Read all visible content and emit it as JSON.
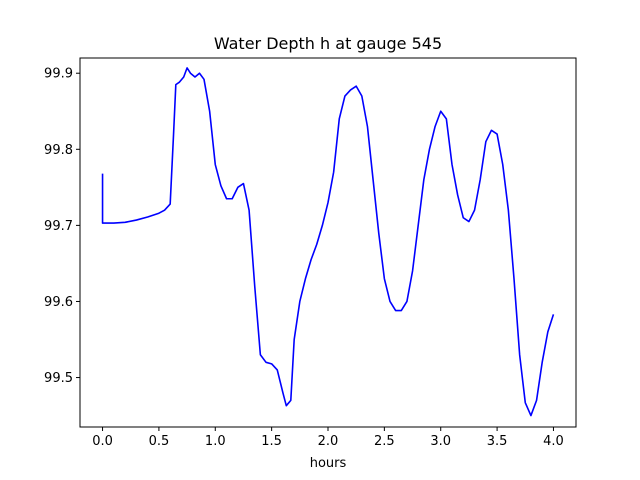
{
  "chart_data": {
    "type": "line",
    "title": "Water Depth h at gauge 545",
    "xlabel": "hours",
    "ylabel": "",
    "xlim": [
      -0.2,
      4.2
    ],
    "ylim": [
      99.435,
      99.92
    ],
    "xticks": [
      "0.0",
      "0.5",
      "1.0",
      "1.5",
      "2.0",
      "2.5",
      "3.0",
      "3.5",
      "4.0"
    ],
    "yticks": [
      "99.5",
      "99.6",
      "99.7",
      "99.8",
      "99.9"
    ],
    "grid": false,
    "legend": "none",
    "series": [
      {
        "color": "#0000ff",
        "x": [
          0.0,
          0.0,
          0.05,
          0.1,
          0.2,
          0.3,
          0.4,
          0.5,
          0.55,
          0.6,
          0.63,
          0.65,
          0.68,
          0.72,
          0.75,
          0.78,
          0.82,
          0.86,
          0.9,
          0.95,
          1.0,
          1.05,
          1.1,
          1.15,
          1.2,
          1.25,
          1.3,
          1.35,
          1.4,
          1.45,
          1.5,
          1.55,
          1.6,
          1.63,
          1.67,
          1.7,
          1.75,
          1.8,
          1.85,
          1.9,
          1.95,
          2.0,
          2.05,
          2.1,
          2.15,
          2.2,
          2.25,
          2.3,
          2.35,
          2.4,
          2.45,
          2.5,
          2.55,
          2.6,
          2.65,
          2.7,
          2.75,
          2.8,
          2.85,
          2.9,
          2.95,
          3.0,
          3.05,
          3.1,
          3.15,
          3.2,
          3.25,
          3.3,
          3.35,
          3.4,
          3.45,
          3.5,
          3.55,
          3.6,
          3.65,
          3.7,
          3.75,
          3.8,
          3.85,
          3.9,
          3.95,
          4.0
        ],
        "y": [
          99.768,
          99.703,
          99.703,
          99.703,
          99.704,
          99.707,
          99.711,
          99.716,
          99.72,
          99.728,
          99.82,
          99.885,
          99.888,
          99.895,
          99.907,
          99.9,
          99.895,
          99.9,
          99.892,
          99.85,
          99.78,
          99.752,
          99.735,
          99.735,
          99.75,
          99.755,
          99.72,
          99.62,
          99.53,
          99.52,
          99.518,
          99.51,
          99.48,
          99.463,
          99.47,
          99.55,
          99.6,
          99.63,
          99.655,
          99.675,
          99.7,
          99.73,
          99.77,
          99.84,
          99.87,
          99.878,
          99.883,
          99.87,
          99.83,
          99.76,
          99.69,
          99.63,
          99.6,
          99.588,
          99.588,
          99.6,
          99.64,
          99.7,
          99.76,
          99.8,
          99.83,
          99.85,
          99.84,
          99.78,
          99.74,
          99.71,
          99.705,
          99.72,
          99.76,
          99.81,
          99.825,
          99.82,
          99.78,
          99.72,
          99.63,
          99.53,
          99.467,
          99.45,
          99.47,
          99.52,
          99.56,
          99.583
        ]
      }
    ]
  }
}
